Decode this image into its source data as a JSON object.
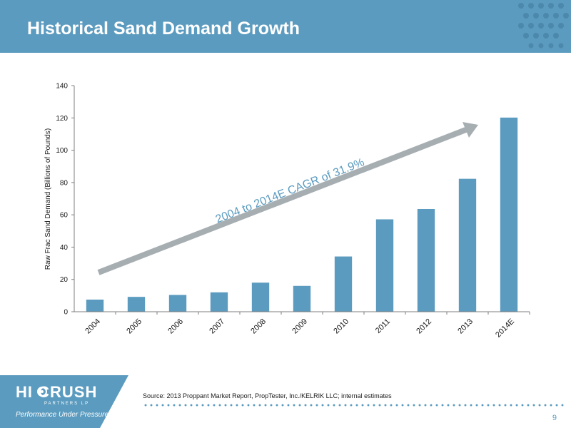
{
  "header": {
    "title": "Historical Sand Demand Growth"
  },
  "chart_data": {
    "type": "bar",
    "categories": [
      "2004",
      "2005",
      "2006",
      "2007",
      "2008",
      "2009",
      "2010",
      "2011",
      "2012",
      "2013",
      "2014E"
    ],
    "values": [
      7.5,
      9.2,
      10.4,
      12.0,
      18.0,
      16.0,
      34.2,
      57.2,
      63.6,
      82.3,
      120.2
    ],
    "ylabel": "Raw Frac Sand Demand (Billions of Pounds)",
    "ylim": [
      0,
      140
    ],
    "yticks": [
      0,
      20,
      40,
      60,
      80,
      100,
      120,
      140
    ],
    "bar_color": "#5b9bbf",
    "grid": false,
    "annotation": {
      "text": "2004 to 2014E CAGR of 31.9%",
      "arrow_color": "#a6aeb2",
      "text_color": "#5b9bbf"
    }
  },
  "footer": {
    "source": "Source: 2013 Proppant Market Report, PropTester, Inc./KELRIK LLC; internal estimates",
    "page_number": "9",
    "logo_text": "HI CRUSH",
    "logo_sub": "PARTNERS LP",
    "tagline": "Performance Under Pressure"
  }
}
